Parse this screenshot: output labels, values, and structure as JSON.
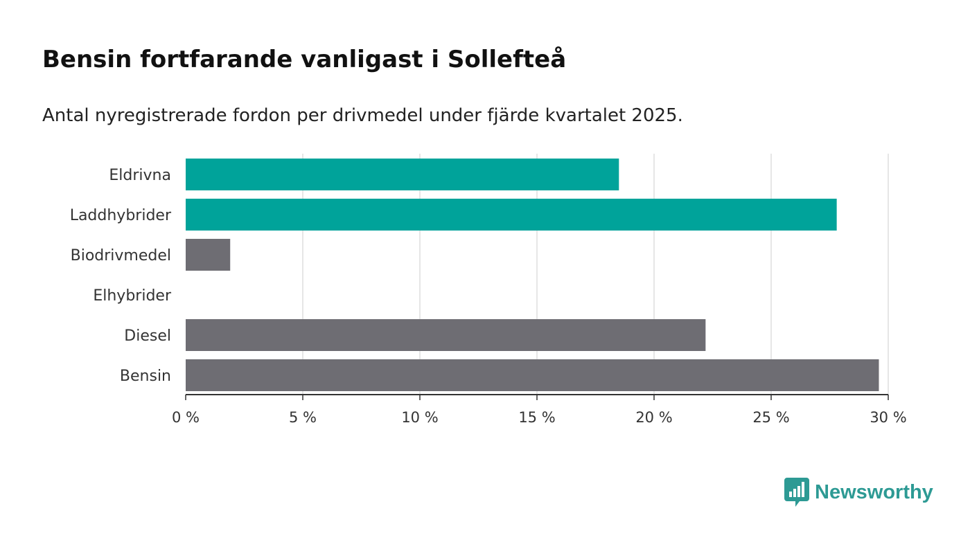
{
  "header": {
    "title": "Bensin fortfarande vanligast i Sollefteå",
    "subtitle": "Antal nyregistrerade fordon per drivmedel under fjärde kvartalet 2025."
  },
  "chart_data": {
    "type": "bar",
    "orientation": "horizontal",
    "categories": [
      "Eldrivna",
      "Laddhybrider",
      "Biodrivmedel",
      "Elhybrider",
      "Diesel",
      "Bensin"
    ],
    "values": [
      18.5,
      27.8,
      1.9,
      0,
      22.2,
      29.6
    ],
    "bar_colors": [
      "#00a39a",
      "#00a39a",
      "#6e6d73",
      "#6e6d73",
      "#6e6d73",
      "#6e6d73"
    ],
    "xlim": [
      0,
      30
    ],
    "xticks": [
      0,
      5,
      10,
      15,
      20,
      25,
      30
    ],
    "xtick_labels": [
      "0 %",
      "5 %",
      "10 %",
      "15 %",
      "20 %",
      "25 %",
      "30 %"
    ],
    "grid": "vertical",
    "title": "Bensin fortfarande vanligast i Sollefteå",
    "subtitle": "Antal nyregistrerade fordon per drivmedel under fjärde kvartalet 2025.",
    "xlabel": "",
    "ylabel": ""
  },
  "brand": {
    "name": "Newsworthy",
    "color": "#2d9a94",
    "icon": "bar-chart-speech-bubble-icon"
  }
}
